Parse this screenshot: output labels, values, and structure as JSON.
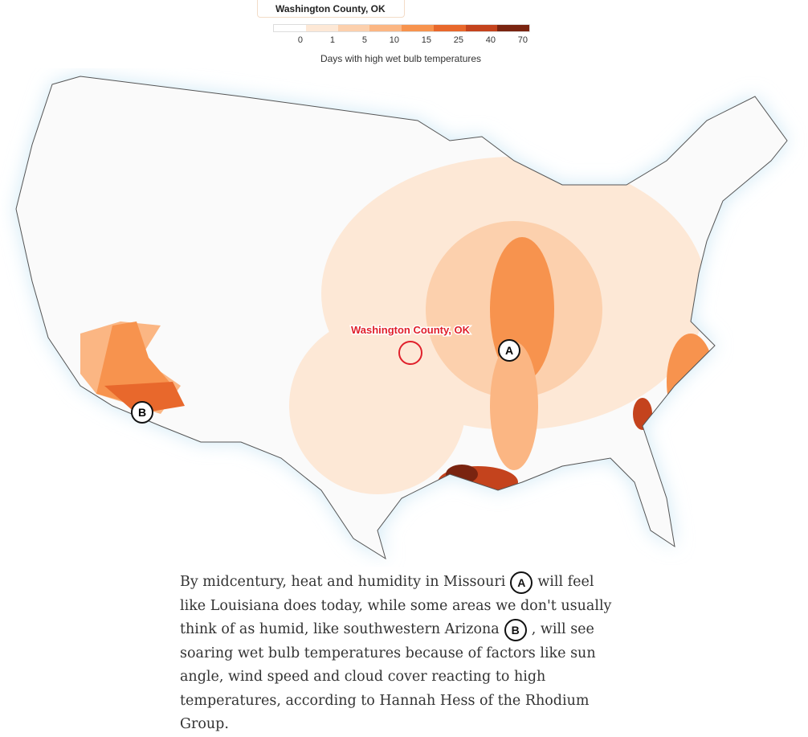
{
  "search": {
    "value": "Washington County, OK"
  },
  "legend": {
    "title": "Days with high wet bulb temperatures",
    "ticks": [
      0,
      1,
      5,
      10,
      15,
      25,
      40,
      70
    ],
    "colors": [
      "#ffffff",
      "#fde8d6",
      "#fcd0ad",
      "#fbb683",
      "#f7934e",
      "#e8682c",
      "#c4431d",
      "#7a2410"
    ]
  },
  "map": {
    "marker_label": "Washington County, OK",
    "callouts": [
      "A",
      "B"
    ]
  },
  "caption": {
    "parts": [
      "By midcentury, heat and humidity in Missouri",
      "A",
      "will feel like Louisiana does today, while some areas we don't usually think of as humid, like southwestern Arizona",
      "B",
      ", will see soaring wet bulb temperatures because of factors like sun angle, wind speed and cloud cover reacting to high temperatures, according to Hannah Hess of the Rhodium Group."
    ]
  }
}
